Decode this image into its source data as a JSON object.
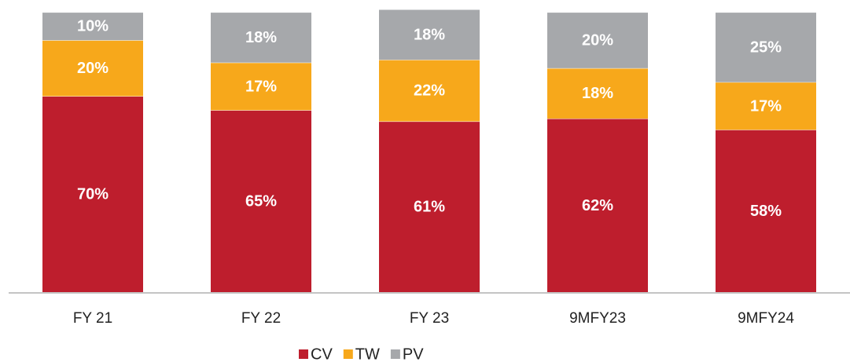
{
  "chart_data": {
    "type": "stacked_bar",
    "categories": [
      "FY 21",
      "FY 22",
      "FY 23",
      "9MFY23",
      "9MFY24"
    ],
    "series": [
      {
        "name": "CV",
        "color": "#be1e2d",
        "values": [
          70,
          65,
          61,
          62,
          58
        ],
        "value_labels": [
          "70%",
          "65%",
          "61%",
          "62%",
          "58%"
        ]
      },
      {
        "name": "TW",
        "color": "#f7a81b",
        "values": [
          20,
          17,
          22,
          18,
          17
        ],
        "value_labels": [
          "20%",
          "17%",
          "22%",
          "18%",
          "17%"
        ]
      },
      {
        "name": "PV",
        "color": "#a6a8ab",
        "values": [
          10,
          18,
          18,
          20,
          25
        ],
        "value_labels": [
          "10%",
          "18%",
          "18%",
          "20%",
          "25%"
        ]
      }
    ],
    "ylim": [
      0,
      101
    ]
  }
}
